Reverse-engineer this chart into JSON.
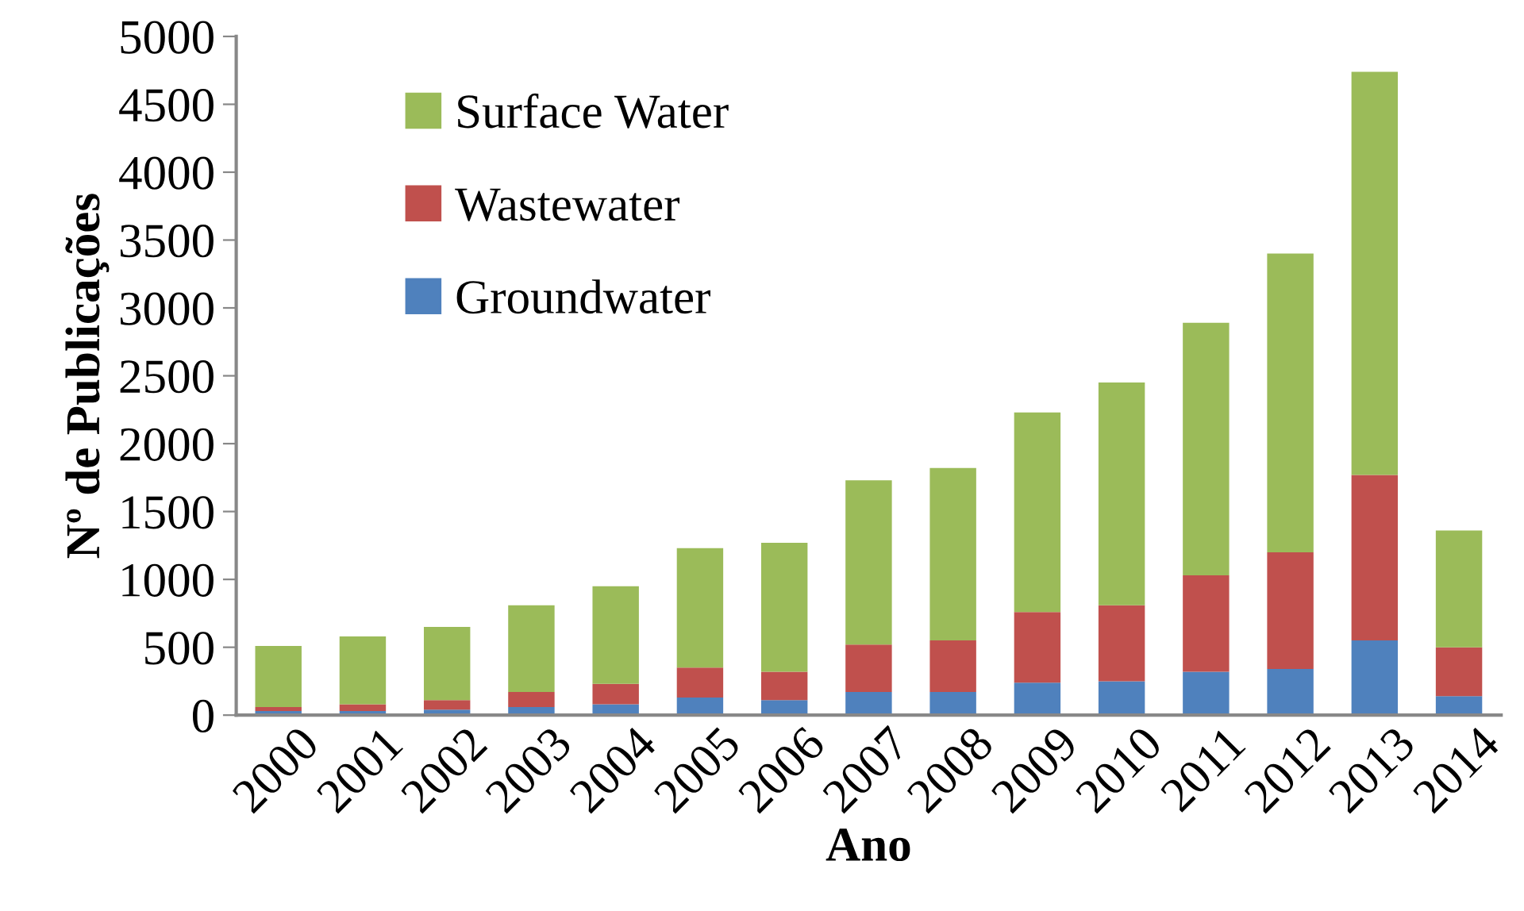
{
  "chart_data": {
    "type": "bar",
    "stacked": true,
    "xlabel": "Ano",
    "ylabel": "Nº de Publicações",
    "categories": [
      "2000",
      "2001",
      "2002",
      "2003",
      "2004",
      "2005",
      "2006",
      "2007",
      "2008",
      "2009",
      "2010",
      "2011",
      "2012",
      "2013",
      "2014"
    ],
    "series": [
      {
        "name": "Groundwater",
        "color": "#4f81bd",
        "values": [
          30,
          30,
          40,
          60,
          80,
          130,
          110,
          170,
          170,
          240,
          250,
          320,
          340,
          550,
          140
        ]
      },
      {
        "name": "Wastewater",
        "color": "#c0504d",
        "values": [
          30,
          50,
          70,
          110,
          150,
          220,
          210,
          350,
          380,
          520,
          560,
          710,
          860,
          1220,
          360
        ]
      },
      {
        "name": "Surface Water",
        "color": "#9bbb59",
        "values": [
          450,
          500,
          540,
          640,
          720,
          880,
          950,
          1210,
          1270,
          1470,
          1640,
          1860,
          2200,
          2970,
          860
        ]
      }
    ],
    "ylim": [
      0,
      5000
    ],
    "yticks": [
      0,
      500,
      1000,
      1500,
      2000,
      2500,
      3000,
      3500,
      4000,
      4500,
      5000
    ],
    "grid": false,
    "legend": "top left"
  }
}
